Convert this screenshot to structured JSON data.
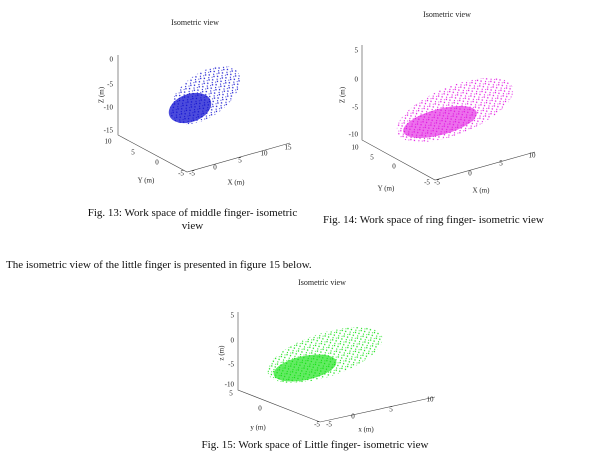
{
  "figures": [
    {
      "title": "Isometric view",
      "z_label": "Z (m)",
      "y_label": "Y (m)",
      "x_label": "X (m)",
      "z_ticks": [
        "0",
        "-5",
        "-10",
        "-15"
      ],
      "y_ticks": [
        "10",
        "5",
        "0",
        "-5"
      ],
      "x_ticks": [
        "-5",
        "0",
        "5",
        "10",
        "15"
      ],
      "caption": "Fig. 13: Work space of middle finger- isometric view"
    },
    {
      "title": "Isometric view",
      "z_label": "Z (m)",
      "y_label": "Y (m)",
      "x_label": "X (m)",
      "z_ticks": [
        "5",
        "0",
        "-5",
        "-10"
      ],
      "y_ticks": [
        "10",
        "5",
        "0",
        "-5"
      ],
      "x_ticks": [
        "-5",
        "0",
        "5",
        "10"
      ],
      "caption": "Fig. 14: Work space of ring finger- isometric view"
    },
    {
      "title": "Isometric view",
      "z_label": "z (m)",
      "y_label": "y (m)",
      "x_label": "x (m)",
      "z_ticks": [
        "5",
        "0",
        "-5",
        "-10"
      ],
      "y_ticks": [
        "5",
        "0",
        "-5"
      ],
      "x_ticks": [
        "-5",
        "0",
        "5",
        "10"
      ],
      "caption": "Fig. 15: Work space of Little finger- isometric view"
    }
  ],
  "paragraph": "The isometric view of the little finger is presented in figure 15 below."
}
